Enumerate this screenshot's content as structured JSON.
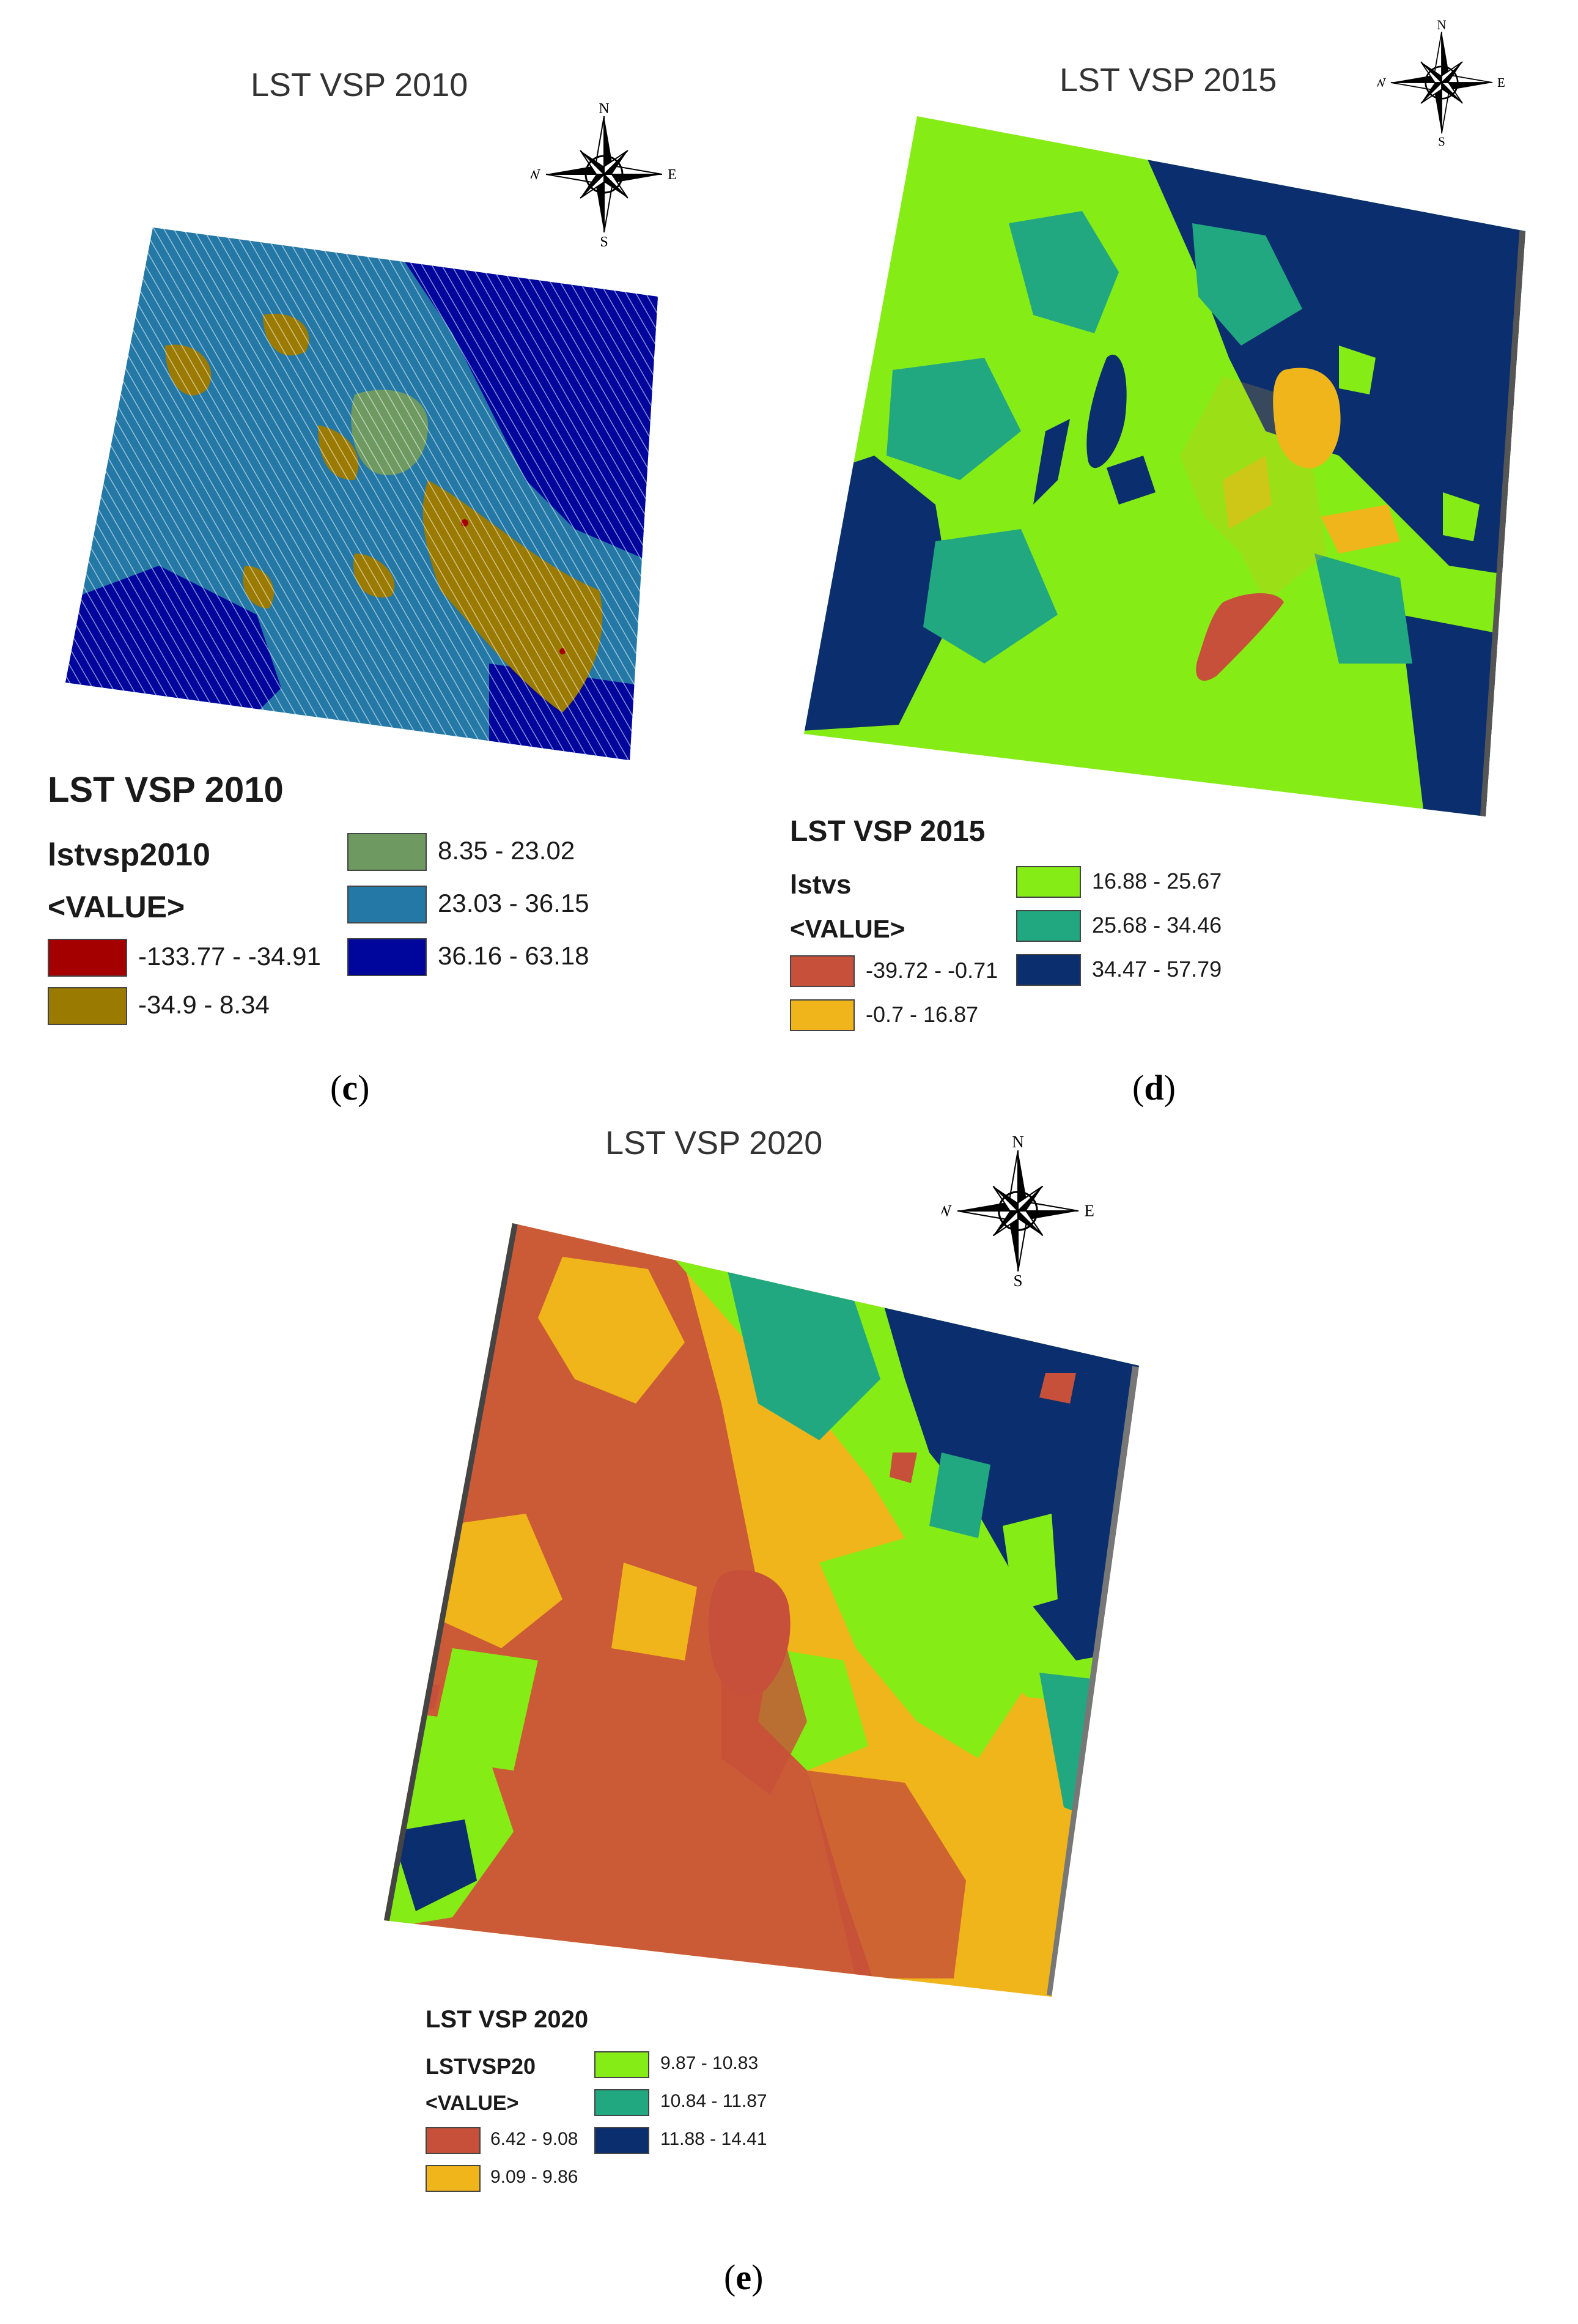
{
  "colors": {
    "c2010": [
      "#a40000",
      "#9b7a00",
      "#6e9a61",
      "#2478a6",
      "#00069c"
    ],
    "c2015": [
      "#c7503a",
      "#f0b51a",
      "#86ec16",
      "#22a880",
      "#0a2e6e"
    ],
    "c2020": [
      "#c7503a",
      "#f0b51a",
      "#86ec16",
      "#22a880",
      "#0a2e6e"
    ]
  },
  "panel_c": {
    "title": "LST VSP 2010",
    "legend_heading": "LST VSP 2010",
    "layer_name": "lstvsp2010",
    "value_field": "<VALUE>",
    "classes": [
      {
        "label": "-133.77 - -34.91"
      },
      {
        "label": "-34.9 - 8.34"
      },
      {
        "label": "8.35 - 23.02"
      },
      {
        "label": "23.03 - 36.15"
      },
      {
        "label": "36.16 - 63.18"
      }
    ],
    "caption_letter": "c"
  },
  "panel_d": {
    "title": "LST VSP 2015",
    "legend_heading": "LST VSP 2015",
    "layer_name": "lstvs",
    "value_field": "<VALUE>",
    "classes": [
      {
        "label": "-39.72 - -0.71"
      },
      {
        "label": "-0.7 - 16.87"
      },
      {
        "label": "16.88 - 25.67"
      },
      {
        "label": "25.68 - 34.46"
      },
      {
        "label": "34.47 - 57.79"
      }
    ],
    "caption_letter": "d"
  },
  "panel_e": {
    "title": "LST VSP 2020",
    "legend_heading": "LST VSP 2020",
    "layer_name": "LSTVSP20",
    "value_field": "<VALUE>",
    "classes": [
      {
        "label": "6.42 - 9.08"
      },
      {
        "label": "9.09 - 9.86"
      },
      {
        "label": "9.87 - 10.83"
      },
      {
        "label": "10.84 - 11.87"
      },
      {
        "label": "11.88 - 14.41"
      }
    ],
    "caption_letter": "e"
  },
  "compass_labels": {
    "n": "N",
    "s": "S",
    "e": "E",
    "w": "W"
  }
}
